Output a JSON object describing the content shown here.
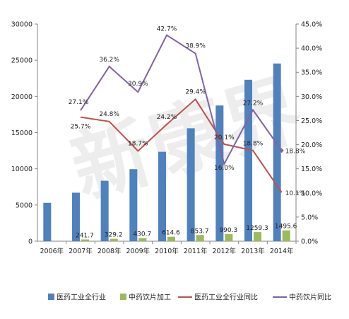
{
  "chart_data": {
    "type": "bar",
    "categories": [
      "2006年",
      "2007年",
      "2008年",
      "2009年",
      "2010年",
      "2011年",
      "2012年",
      "2013年",
      "2014年"
    ],
    "series": [
      {
        "name": "医药工业全行业",
        "axis": "left",
        "type": "bar",
        "color": "#4f81bd",
        "values": [
          5300,
          6700,
          8350,
          9950,
          12350,
          15600,
          18750,
          22300,
          24550
        ]
      },
      {
        "name": "中药饮片加工",
        "axis": "left",
        "type": "bar",
        "color": "#9bbb59",
        "values": [
          null,
          241.7,
          329.2,
          430.7,
          614.6,
          853.7,
          990.3,
          1259.3,
          1495.6
        ],
        "labels": [
          "",
          "241.7",
          "329.2",
          "430.7",
          "614.6",
          "853.7",
          "990.3",
          "1259.3",
          "1495.6"
        ]
      },
      {
        "name": "医药工业全行业同比",
        "axis": "right",
        "type": "line",
        "color": "#c0504d",
        "values": [
          null,
          25.7,
          24.8,
          18.7,
          24.2,
          29.4,
          20.1,
          18.8,
          10.1
        ],
        "labels": [
          "",
          "25.7%",
          "24.8%",
          "18.7%",
          "24.2%",
          "29.4%",
          "20.1%",
          "18.8%",
          "10.1%"
        ]
      },
      {
        "name": "中药饮片同比",
        "axis": "right",
        "type": "line",
        "color": "#8064a2",
        "values": [
          null,
          27.1,
          36.2,
          30.9,
          42.7,
          38.9,
          16.0,
          27.2,
          18.8
        ],
        "labels": [
          "",
          "27.1%",
          "36.2%",
          "30.9%",
          "42.7%",
          "38.9%",
          "16.0%",
          "27.2%",
          "18.8%"
        ]
      }
    ],
    "y_left": {
      "min": 0,
      "max": 30000,
      "ticks": [
        "0",
        "5000",
        "10000",
        "15000",
        "20000",
        "25000",
        "30000"
      ]
    },
    "y_right": {
      "min": 0,
      "max": 45,
      "ticks": [
        "0.0%",
        "5.0%",
        "10.0%",
        "15.0%",
        "20.0%",
        "25.0%",
        "30.0%",
        "35.0%",
        "40.0%",
        "45.0%"
      ]
    },
    "grid": false,
    "legend_position": "bottom",
    "watermark": "新康界"
  }
}
